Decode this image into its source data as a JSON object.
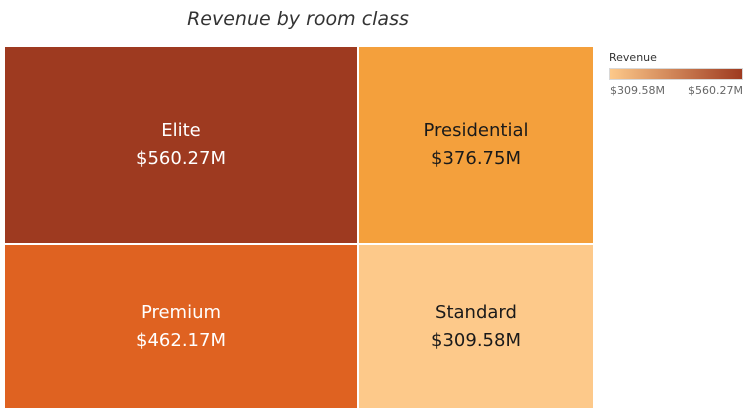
{
  "chart_data": {
    "type": "treemap",
    "title": "Revenue by room class",
    "measure": "Revenue",
    "color_scale": {
      "min_value": 309.58,
      "max_value": 560.27,
      "min_label": "$309.58M",
      "max_label": "$560.27M",
      "min_color": "#fdc98a",
      "max_color": "#9e3a20"
    },
    "items": [
      {
        "label": "Elite",
        "value": 560.27,
        "value_label": "$560.27M",
        "color": "#9e3a20",
        "text_color": "#ffffff"
      },
      {
        "label": "Premium",
        "value": 462.17,
        "value_label": "$462.17M",
        "color": "#df6221",
        "text_color": "#ffffff"
      },
      {
        "label": "Presidential",
        "value": 376.75,
        "value_label": "$376.75M",
        "color": "#f4a03c",
        "text_color": "#1a1a1a"
      },
      {
        "label": "Standard",
        "value": 309.58,
        "value_label": "$309.58M",
        "color": "#fdc98a",
        "text_color": "#1a1a1a"
      }
    ]
  }
}
